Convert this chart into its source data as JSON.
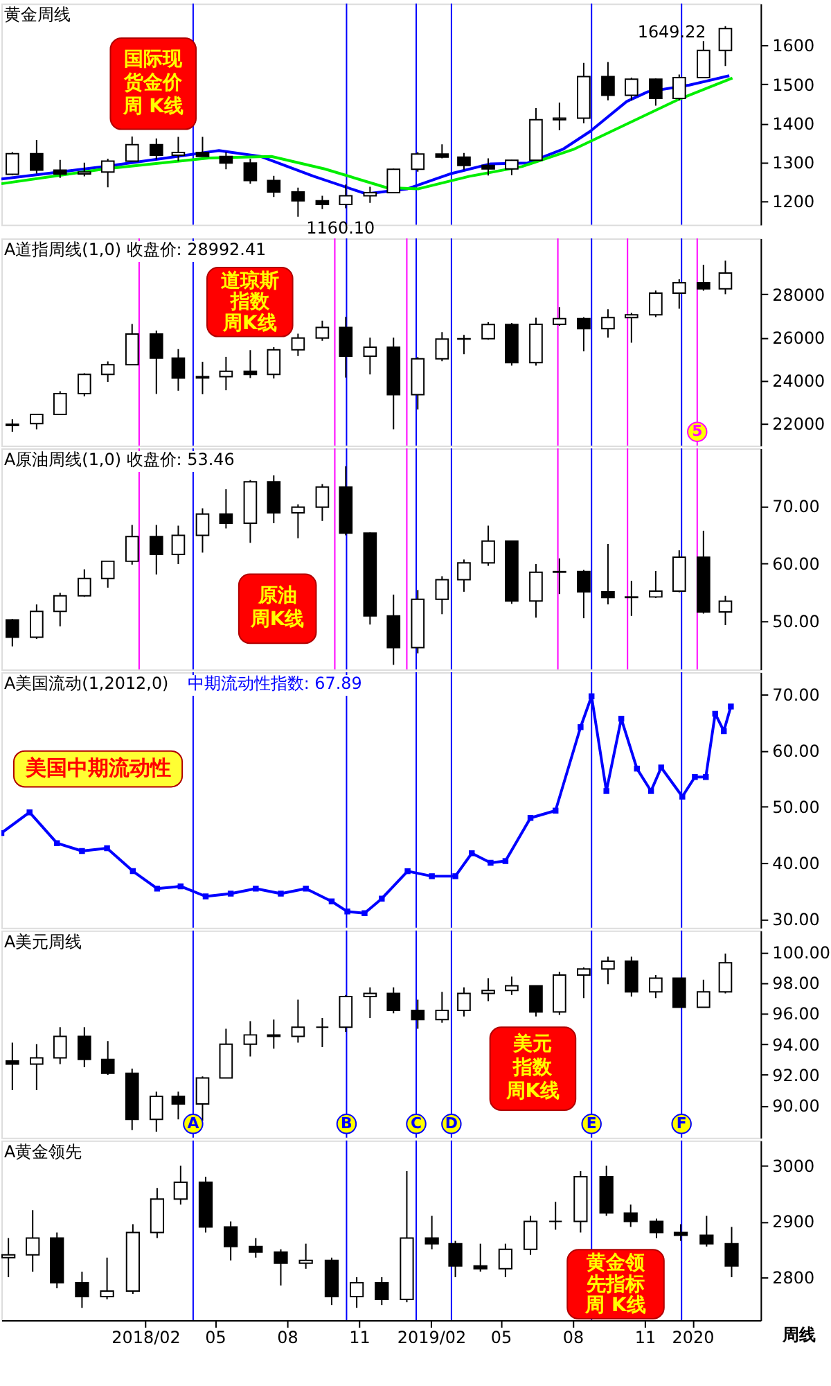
{
  "chart_data": [
    {
      "type": "candlestick",
      "title": "黄金周线",
      "xlim": [
        "2017-08-01",
        "2020-03-28"
      ],
      "tick_labels": "y",
      "grid": false,
      "legend": false,
      "ylim": [
        1140,
        1707
      ],
      "yticks": [
        1200,
        1300,
        1400,
        1500,
        1600
      ],
      "x": [
        "2017-08-15",
        "2017-09-15",
        "2017-10-15",
        "2017-11-15",
        "2017-12-15",
        "2018-01-15",
        "2018-02-15",
        "2018-03-15",
        "2018-04-15",
        "2018-05-15",
        "2018-06-15",
        "2018-07-15",
        "2018-08-15",
        "2018-09-15",
        "2018-10-15",
        "2018-11-15",
        "2018-12-15",
        "2019-01-15",
        "2019-02-15",
        "2019-03-15",
        "2019-04-15",
        "2019-05-15",
        "2019-06-15",
        "2019-07-15",
        "2019-08-15",
        "2019-09-15",
        "2019-10-15",
        "2019-11-15",
        "2019-12-15",
        "2020-01-15",
        "2020-02-12"
      ],
      "ohlc": [
        [
          1269,
          1326,
          1267,
          1322
        ],
        [
          1322,
          1357,
          1271,
          1280
        ],
        [
          1280,
          1306,
          1260,
          1270
        ],
        [
          1270,
          1299,
          1264,
          1275
        ],
        [
          1275,
          1309,
          1236,
          1303
        ],
        [
          1303,
          1366,
          1302,
          1345
        ],
        [
          1345,
          1361,
          1307,
          1318
        ],
        [
          1318,
          1365,
          1303,
          1325
        ],
        [
          1325,
          1365,
          1315,
          1315
        ],
        [
          1315,
          1326,
          1282,
          1298
        ],
        [
          1298,
          1309,
          1245,
          1253
        ],
        [
          1253,
          1265,
          1211,
          1224
        ],
        [
          1224,
          1235,
          1160.1,
          1201
        ],
        [
          1201,
          1214,
          1180,
          1192
        ],
        [
          1192,
          1243,
          1182,
          1214
        ],
        [
          1214,
          1237,
          1196,
          1222
        ],
        [
          1222,
          1284,
          1221,
          1282
        ],
        [
          1282,
          1326,
          1276,
          1321
        ],
        [
          1321,
          1346,
          1310,
          1313
        ],
        [
          1313,
          1324,
          1281,
          1292
        ],
        [
          1292,
          1310,
          1266,
          1283
        ],
        [
          1283,
          1306,
          1267,
          1305
        ],
        [
          1305,
          1439,
          1305,
          1409
        ],
        [
          1409,
          1453,
          1382,
          1413
        ],
        [
          1413,
          1555,
          1400,
          1520
        ],
        [
          1520,
          1557,
          1459,
          1472
        ],
        [
          1472,
          1517,
          1459,
          1513
        ],
        [
          1513,
          1515,
          1445,
          1464
        ],
        [
          1464,
          1525,
          1459,
          1517
        ],
        [
          1517,
          1611,
          1517,
          1587
        ],
        [
          1587,
          1649.22,
          1547,
          1643
        ]
      ],
      "series": [
        {
          "type": "line",
          "color": "#0000ff",
          "x": [
            "2017-08-01",
            "2017-12-11",
            "2018-05-06",
            "2018-06-28",
            "2018-09-04",
            "2018-11-10",
            "2019-01-02",
            "2019-02-25",
            "2019-04-18",
            "2019-06-04",
            "2019-07-20",
            "2019-08-23",
            "2019-10-09",
            "2019-11-05",
            "2019-12-28",
            "2020-02-17"
          ],
          "values": [
            1257,
            1289,
            1330,
            1315,
            1264,
            1219,
            1232,
            1270,
            1296,
            1298,
            1334,
            1379,
            1456,
            1481,
            1498,
            1522
          ]
        },
        {
          "type": "line",
          "color": "#00ee00",
          "x": [
            "2017-08-01",
            "2017-12-11",
            "2018-04-23",
            "2018-07-12",
            "2018-09-18",
            "2018-12-06",
            "2019-01-16",
            "2019-03-22",
            "2019-05-28",
            "2019-08-03",
            "2019-10-09",
            "2019-12-15",
            "2020-02-21"
          ],
          "values": [
            1245,
            1283,
            1311,
            1315,
            1283,
            1235,
            1232,
            1264,
            1289,
            1334,
            1398,
            1462,
            1516
          ]
        }
      ],
      "ref_lines": [
        {
          "axis": "x",
          "value": "2018-04-03",
          "color": "#0000ff"
        },
        {
          "axis": "x",
          "value": "2018-10-16",
          "color": "#0000ff"
        },
        {
          "axis": "x",
          "value": "2019-01-13",
          "color": "#0000ff"
        },
        {
          "axis": "x",
          "value": "2019-02-27",
          "color": "#0000ff"
        },
        {
          "axis": "x",
          "value": "2019-08-25",
          "color": "#0000ff"
        },
        {
          "axis": "x",
          "value": "2019-12-18",
          "color": "#0000ff"
        }
      ],
      "annotations": [
        "国际现货金价周 K线",
        {
          "text": "1649.22",
          "x": "2020-02-12",
          "y": 1649.22
        },
        {
          "text": "1160.10",
          "x": "2018-08-15",
          "y": 1160.1
        }
      ]
    },
    {
      "type": "candlestick",
      "title": "A道指周线(1,0) 收盘价: 28992.41",
      "xlim": [
        "2017-08-01",
        "2020-03-28"
      ],
      "tick_labels": "y",
      "grid": false,
      "legend": false,
      "ylim": [
        20950,
        30600
      ],
      "yticks": [
        22000,
        24000,
        26000,
        28000
      ],
      "x": [
        "2017-08-15",
        "2017-09-15",
        "2017-10-15",
        "2017-11-15",
        "2017-12-15",
        "2018-01-15",
        "2018-02-15",
        "2018-03-15",
        "2018-04-15",
        "2018-05-15",
        "2018-06-15",
        "2018-07-15",
        "2018-08-15",
        "2018-09-15",
        "2018-10-15",
        "2018-11-15",
        "2018-12-15",
        "2019-01-15",
        "2019-02-15",
        "2019-03-15",
        "2019-04-15",
        "2019-05-15",
        "2019-06-15",
        "2019-07-15",
        "2019-08-15",
        "2019-09-15",
        "2019-10-15",
        "2019-11-15",
        "2019-12-15",
        "2020-01-15",
        "2020-02-12"
      ],
      "ohlc": [
        [
          21891,
          22180,
          21600,
          21948
        ],
        [
          21981,
          22419,
          21710,
          22405
        ],
        [
          22405,
          23485,
          22405,
          23377
        ],
        [
          23377,
          24328,
          23242,
          24272
        ],
        [
          24272,
          24876,
          23921,
          24719
        ],
        [
          24719,
          26617,
          24719,
          26149
        ],
        [
          26149,
          26307,
          23360,
          25029
        ],
        [
          25029,
          25450,
          23509,
          24103
        ],
        [
          24103,
          24858,
          23345,
          24163
        ],
        [
          24163,
          25087,
          23531,
          24416
        ],
        [
          24416,
          25402,
          24101,
          24271
        ],
        [
          24271,
          25538,
          24077,
          25415
        ],
        [
          25415,
          26167,
          25124,
          25965
        ],
        [
          25965,
          26769,
          25836,
          26458
        ],
        [
          26458,
          26951,
          24123,
          25116
        ],
        [
          25116,
          25980,
          24268,
          25538
        ],
        [
          25538,
          25980,
          21713,
          23327
        ],
        [
          23327,
          25075,
          22638,
          24999
        ],
        [
          24999,
          26242,
          24883,
          25916
        ],
        [
          25916,
          26109,
          25208,
          25929
        ],
        [
          25929,
          26696,
          25882,
          26593
        ],
        [
          26593,
          26668,
          24680,
          24815
        ],
        [
          24815,
          26907,
          24680,
          26600
        ],
        [
          26600,
          27399,
          26539,
          26864
        ],
        [
          26864,
          26933,
          25339,
          26403
        ],
        [
          26403,
          27306,
          25978,
          26917
        ],
        [
          26917,
          27130,
          25743,
          27046
        ],
        [
          27046,
          28175,
          26939,
          28051
        ],
        [
          28051,
          28702,
          27325,
          28538
        ],
        [
          28538,
          29374,
          28170,
          28256
        ],
        [
          28256,
          29568,
          28004,
          28992.41
        ]
      ],
      "ref_lines": [
        {
          "axis": "x",
          "value": "2018-04-03",
          "color": "#0000ff"
        },
        {
          "axis": "x",
          "value": "2018-10-16",
          "color": "#0000ff"
        },
        {
          "axis": "x",
          "value": "2019-01-13",
          "color": "#0000ff"
        },
        {
          "axis": "x",
          "value": "2019-02-27",
          "color": "#0000ff"
        },
        {
          "axis": "x",
          "value": "2019-08-25",
          "color": "#0000ff"
        },
        {
          "axis": "x",
          "value": "2019-12-18",
          "color": "#0000ff"
        },
        {
          "axis": "x",
          "value": "2018-01-24",
          "color": "#ff00ff"
        },
        {
          "axis": "x",
          "value": "2018-10-01",
          "color": "#ff00ff"
        },
        {
          "axis": "x",
          "value": "2019-01-01",
          "color": "#ff00ff"
        },
        {
          "axis": "x",
          "value": "2019-07-13",
          "color": "#ff00ff"
        },
        {
          "axis": "x",
          "value": "2019-10-10",
          "color": "#ff00ff"
        },
        {
          "axis": "x",
          "value": "2020-01-07",
          "color": "#ff00ff",
          "label": "5"
        }
      ],
      "annotations": [
        "道琼斯指数周K线"
      ]
    },
    {
      "type": "candlestick",
      "title": "A原油周线(1,0) 收盘价: 53.46",
      "xlim": [
        "2017-08-01",
        "2020-03-28"
      ],
      "tick_labels": "y",
      "grid": false,
      "legend": false,
      "ylim": [
        41.6,
        80
      ],
      "yticks": [
        {
          "value": 50,
          "label": "50.00"
        },
        {
          "value": 60,
          "label": "60.00"
        },
        {
          "value": 70,
          "label": "70.00"
        }
      ],
      "x": [
        "2017-08-15",
        "2017-09-15",
        "2017-10-15",
        "2017-11-15",
        "2017-12-15",
        "2018-01-15",
        "2018-02-15",
        "2018-03-15",
        "2018-04-15",
        "2018-05-15",
        "2018-06-15",
        "2018-07-15",
        "2018-08-15",
        "2018-09-15",
        "2018-10-15",
        "2018-11-15",
        "2018-12-15",
        "2019-01-15",
        "2019-02-15",
        "2019-03-15",
        "2019-04-15",
        "2019-05-15",
        "2019-06-15",
        "2019-07-15",
        "2019-08-15",
        "2019-09-15",
        "2019-10-15",
        "2019-11-15",
        "2019-12-15",
        "2020-01-15",
        "2020-02-12"
      ],
      "ohlc": [
        [
          50.2,
          50.4,
          45.6,
          47.2
        ],
        [
          47.2,
          52.9,
          46.9,
          51.7
        ],
        [
          51.7,
          54.9,
          49.1,
          54.4
        ],
        [
          54.4,
          59.0,
          54.2,
          57.4
        ],
        [
          57.4,
          60.5,
          55.8,
          60.4
        ],
        [
          60.4,
          66.7,
          59.8,
          64.7
        ],
        [
          64.7,
          66.7,
          58.1,
          61.6
        ],
        [
          61.6,
          66.6,
          59.9,
          64.9
        ],
        [
          64.9,
          69.6,
          61.9,
          68.6
        ],
        [
          68.6,
          72.9,
          66.1,
          67.0
        ],
        [
          67.0,
          74.5,
          63.6,
          74.2
        ],
        [
          74.2,
          75.3,
          67.0,
          68.8
        ],
        [
          68.8,
          70.3,
          64.4,
          69.8
        ],
        [
          69.8,
          73.8,
          67.4,
          73.3
        ],
        [
          73.3,
          76.9,
          64.9,
          65.3
        ],
        [
          65.3,
          65.4,
          49.4,
          50.9
        ],
        [
          50.9,
          54.6,
          42.4,
          45.4
        ],
        [
          45.4,
          55.4,
          44.4,
          53.8
        ],
        [
          53.8,
          57.8,
          51.2,
          57.2
        ],
        [
          57.2,
          60.7,
          55.1,
          60.1
        ],
        [
          60.1,
          66.6,
          59.6,
          63.9
        ],
        [
          63.9,
          64.0,
          53.0,
          53.5
        ],
        [
          53.5,
          59.9,
          50.6,
          58.5
        ],
        [
          58.5,
          60.9,
          54.7,
          58.6
        ],
        [
          58.6,
          58.9,
          50.5,
          55.1
        ],
        [
          55.1,
          63.4,
          52.9,
          54.1
        ],
        [
          54.1,
          57.0,
          50.9,
          54.2
        ],
        [
          54.2,
          58.7,
          54.0,
          55.2
        ],
        [
          55.2,
          62.3,
          55.0,
          61.1
        ],
        [
          61.1,
          65.7,
          51.3,
          51.6
        ],
        [
          51.6,
          54.4,
          49.3,
          53.46
        ]
      ],
      "ref_lines": [
        {
          "axis": "x",
          "value": "2018-04-03",
          "color": "#0000ff"
        },
        {
          "axis": "x",
          "value": "2018-10-16",
          "color": "#0000ff"
        },
        {
          "axis": "x",
          "value": "2019-01-13",
          "color": "#0000ff"
        },
        {
          "axis": "x",
          "value": "2019-02-27",
          "color": "#0000ff"
        },
        {
          "axis": "x",
          "value": "2019-08-25",
          "color": "#0000ff"
        },
        {
          "axis": "x",
          "value": "2019-12-18",
          "color": "#0000ff"
        },
        {
          "axis": "x",
          "value": "2018-01-24",
          "color": "#ff00ff"
        },
        {
          "axis": "x",
          "value": "2018-10-01",
          "color": "#ff00ff"
        },
        {
          "axis": "x",
          "value": "2019-01-01",
          "color": "#ff00ff"
        },
        {
          "axis": "x",
          "value": "2019-07-13",
          "color": "#ff00ff"
        },
        {
          "axis": "x",
          "value": "2019-10-10",
          "color": "#ff00ff"
        },
        {
          "axis": "x",
          "value": "2020-01-07",
          "color": "#ff00ff"
        }
      ],
      "annotations": [
        "原油周K线"
      ]
    },
    {
      "type": "line",
      "title": "A美国流动(1,2012,0)",
      "xlim": [
        "2017-08-01",
        "2020-03-28"
      ],
      "tick_labels": "y",
      "grid": false,
      "legend": "top left",
      "marker": "square",
      "ylim": [
        28.4,
        74
      ],
      "yticks": [
        {
          "value": 30,
          "label": "30.00"
        },
        {
          "value": 40,
          "label": "40.00"
        },
        {
          "value": 50,
          "label": "50.00"
        },
        {
          "value": 60,
          "label": "60.00"
        },
        {
          "value": 70,
          "label": "70.00"
        }
      ],
      "series": [
        {
          "name": "中期流动性指数: 67.89",
          "color": "#0000ff",
          "x": [
            "2017-08-01",
            "2017-09-06",
            "2017-10-11",
            "2017-11-12",
            "2017-12-14",
            "2018-01-16",
            "2018-02-16",
            "2018-03-18",
            "2018-04-19",
            "2018-05-21",
            "2018-06-22",
            "2018-07-24",
            "2018-08-25",
            "2018-09-27",
            "2018-10-17",
            "2018-11-08",
            "2018-11-30",
            "2019-01-02",
            "2019-02-02",
            "2019-03-04",
            "2019-03-25",
            "2019-04-18",
            "2019-05-07",
            "2019-06-08",
            "2019-07-10",
            "2019-08-11",
            "2019-08-25",
            "2019-09-13",
            "2019-10-02",
            "2019-10-22",
            "2019-11-09",
            "2019-11-22",
            "2019-12-19",
            "2020-01-04",
            "2020-01-18",
            "2020-01-30",
            "2020-02-10",
            "2020-02-19"
          ],
          "values": [
            45.3,
            49.0,
            43.5,
            42.1,
            42.6,
            38.5,
            35.4,
            35.8,
            34.0,
            34.5,
            35.4,
            34.5,
            35.4,
            33.1,
            31.3,
            31.0,
            33.6,
            38.5,
            37.6,
            37.6,
            41.7,
            40.0,
            40.3,
            48.0,
            49.3,
            64.2,
            69.7,
            52.8,
            65.7,
            56.8,
            52.8,
            57.0,
            51.8,
            55.3,
            55.3,
            66.6,
            63.5,
            67.89
          ]
        }
      ],
      "ref_lines": [
        {
          "axis": "x",
          "value": "2018-04-03",
          "color": "#0000ff"
        },
        {
          "axis": "x",
          "value": "2018-10-16",
          "color": "#0000ff"
        },
        {
          "axis": "x",
          "value": "2019-01-13",
          "color": "#0000ff"
        },
        {
          "axis": "x",
          "value": "2019-02-27",
          "color": "#0000ff"
        },
        {
          "axis": "x",
          "value": "2019-08-25",
          "color": "#0000ff"
        },
        {
          "axis": "x",
          "value": "2019-12-18",
          "color": "#0000ff"
        }
      ],
      "annotations": [
        "美国中期流动性"
      ]
    },
    {
      "type": "candlestick",
      "title": "A美元周线",
      "xlim": [
        "2017-08-01",
        "2020-03-28"
      ],
      "tick_labels": "y",
      "grid": false,
      "legend": false,
      "ylim": [
        87.9,
        101.4
      ],
      "yticks": [
        {
          "value": 90,
          "label": "90.00"
        },
        {
          "value": 92,
          "label": "92.00"
        },
        {
          "value": 94,
          "label": "94.00"
        },
        {
          "value": 96,
          "label": "96.00"
        },
        {
          "value": 98,
          "label": "98.00"
        },
        {
          "value": 100,
          "label": "100.00"
        }
      ],
      "x": [
        "2017-08-15",
        "2017-09-15",
        "2017-10-15",
        "2017-11-15",
        "2017-12-15",
        "2018-01-15",
        "2018-02-15",
        "2018-03-15",
        "2018-04-15",
        "2018-05-15",
        "2018-06-15",
        "2018-07-15",
        "2018-08-15",
        "2018-09-15",
        "2018-10-15",
        "2018-11-15",
        "2018-12-15",
        "2019-01-15",
        "2019-02-15",
        "2019-03-15",
        "2019-04-15",
        "2019-05-15",
        "2019-06-15",
        "2019-07-15",
        "2019-08-15",
        "2019-09-15",
        "2019-10-15",
        "2019-11-15",
        "2019-12-15",
        "2020-01-15",
        "2020-02-12"
      ],
      "ohlc": [
        [
          92.9,
          94.1,
          91.0,
          92.7
        ],
        [
          92.7,
          94.0,
          91.0,
          93.1
        ],
        [
          93.1,
          95.1,
          92.7,
          94.5
        ],
        [
          94.5,
          95.1,
          92.5,
          93.0
        ],
        [
          93.0,
          94.2,
          92.0,
          92.1
        ],
        [
          92.1,
          92.4,
          88.4,
          89.1
        ],
        [
          89.1,
          90.9,
          88.3,
          90.6
        ],
        [
          90.6,
          90.9,
          89.1,
          90.1
        ],
        [
          90.1,
          91.9,
          89.0,
          91.8
        ],
        [
          91.8,
          95.0,
          91.8,
          94.0
        ],
        [
          94.0,
          95.5,
          93.2,
          94.6
        ],
        [
          94.6,
          95.6,
          93.7,
          94.5
        ],
        [
          94.5,
          96.9,
          94.1,
          95.1
        ],
        [
          95.1,
          95.7,
          93.8,
          95.1
        ],
        [
          95.1,
          97.2,
          94.8,
          97.1
        ],
        [
          97.1,
          97.7,
          95.7,
          97.3
        ],
        [
          97.3,
          97.7,
          96.0,
          96.2
        ],
        [
          96.2,
          96.9,
          95.0,
          95.6
        ],
        [
          95.6,
          97.4,
          95.4,
          96.2
        ],
        [
          96.2,
          97.7,
          95.8,
          97.3
        ],
        [
          97.3,
          98.3,
          96.8,
          97.5
        ],
        [
          97.5,
          98.4,
          97.2,
          97.8
        ],
        [
          97.8,
          97.8,
          95.8,
          96.1
        ],
        [
          96.1,
          98.7,
          95.9,
          98.5
        ],
        [
          98.5,
          99.0,
          97.0,
          98.9
        ],
        [
          98.9,
          99.7,
          97.9,
          99.4
        ],
        [
          99.4,
          99.7,
          97.1,
          97.4
        ],
        [
          97.4,
          98.5,
          97.0,
          98.3
        ],
        [
          98.3,
          98.3,
          96.4,
          96.4
        ],
        [
          96.4,
          98.2,
          96.4,
          97.4
        ],
        [
          97.4,
          99.9,
          97.3,
          99.3
        ]
      ],
      "ref_lines": [
        {
          "axis": "x",
          "value": "2018-04-03",
          "color": "#0000ff",
          "label": "A"
        },
        {
          "axis": "x",
          "value": "2018-10-16",
          "color": "#0000ff",
          "label": "B"
        },
        {
          "axis": "x",
          "value": "2019-01-13",
          "color": "#0000ff",
          "label": "C"
        },
        {
          "axis": "x",
          "value": "2019-02-27",
          "color": "#0000ff",
          "label": "D"
        },
        {
          "axis": "x",
          "value": "2019-08-25",
          "color": "#0000ff",
          "label": "E"
        },
        {
          "axis": "x",
          "value": "2019-12-18",
          "color": "#0000ff",
          "label": "F"
        }
      ],
      "annotations": [
        "美元指数周K线"
      ]
    },
    {
      "type": "candlestick",
      "title": "A黄金领先",
      "xlim": [
        "2017-08-01",
        "2020-03-28"
      ],
      "grid": false,
      "legend": false,
      "xticks": [
        {
          "value": "2018-02-01",
          "label": "2018/02"
        },
        {
          "value": "2018-05-01",
          "label": "05"
        },
        {
          "value": "2018-08-01",
          "label": "08"
        },
        {
          "value": "2018-11-01",
          "label": "11"
        },
        {
          "value": "2019-02-01",
          "label": "2019/02"
        },
        {
          "value": "2019-05-01",
          "label": "05"
        },
        {
          "value": "2019-08-01",
          "label": "08"
        },
        {
          "value": "2019-11-01",
          "label": "11"
        },
        {
          "value": "2020-01-01",
          "label": "2020"
        }
      ],
      "ylim": [
        2723,
        3045
      ],
      "yticks": [
        2800,
        2900,
        3000
      ],
      "x": [
        "2017-08-10",
        "2017-09-10",
        "2017-10-11",
        "2017-11-12",
        "2017-12-14",
        "2018-01-16",
        "2018-02-16",
        "2018-03-18",
        "2018-04-19",
        "2018-05-21",
        "2018-06-22",
        "2018-07-24",
        "2018-08-25",
        "2018-09-27",
        "2018-10-29",
        "2018-11-30",
        "2019-01-01",
        "2019-02-02",
        "2019-03-04",
        "2019-04-05",
        "2019-05-07",
        "2019-06-08",
        "2019-07-10",
        "2019-08-11",
        "2019-09-13",
        "2019-10-14",
        "2019-11-16",
        "2019-12-17",
        "2020-01-19",
        "2020-02-20"
      ],
      "ohlc": [
        [
          2835,
          2870,
          2800,
          2840
        ],
        [
          2840,
          2920,
          2810,
          2870
        ],
        [
          2870,
          2880,
          2780,
          2790
        ],
        [
          2790,
          2810,
          2745,
          2765
        ],
        [
          2765,
          2835,
          2760,
          2775
        ],
        [
          2775,
          2895,
          2770,
          2880
        ],
        [
          2880,
          2960,
          2870,
          2940
        ],
        [
          2940,
          3000,
          2930,
          2970
        ],
        [
          2970,
          2980,
          2880,
          2890
        ],
        [
          2890,
          2900,
          2830,
          2855
        ],
        [
          2855,
          2870,
          2835,
          2845
        ],
        [
          2845,
          2850,
          2785,
          2825
        ],
        [
          2825,
          2860,
          2815,
          2830
        ],
        [
          2830,
          2835,
          2750,
          2765
        ],
        [
          2765,
          2800,
          2745,
          2790
        ],
        [
          2790,
          2800,
          2750,
          2760
        ],
        [
          2760,
          2990,
          2755,
          2870
        ],
        [
          2870,
          2910,
          2850,
          2860
        ],
        [
          2860,
          2865,
          2800,
          2820
        ],
        [
          2820,
          2860,
          2810,
          2815
        ],
        [
          2815,
          2860,
          2800,
          2850
        ],
        [
          2850,
          2910,
          2840,
          2900
        ],
        [
          2900,
          2935,
          2885,
          2900
        ],
        [
          2900,
          2990,
          2880,
          2980
        ],
        [
          2980,
          3000,
          2910,
          2915
        ],
        [
          2915,
          2930,
          2890,
          2900
        ],
        [
          2900,
          2905,
          2870,
          2880
        ],
        [
          2880,
          2895,
          2865,
          2875
        ],
        [
          2875,
          2910,
          2855,
          2860
        ],
        [
          2860,
          2890,
          2800,
          2820
        ]
      ],
      "ref_lines": [
        {
          "axis": "x",
          "value": "2018-04-03",
          "color": "#0000ff"
        },
        {
          "axis": "x",
          "value": "2018-10-16",
          "color": "#0000ff"
        },
        {
          "axis": "x",
          "value": "2019-01-13",
          "color": "#0000ff"
        },
        {
          "axis": "x",
          "value": "2019-02-27",
          "color": "#0000ff"
        },
        {
          "axis": "x",
          "value": "2019-08-25",
          "color": "#0000ff"
        },
        {
          "axis": "x",
          "value": "2019-12-18",
          "color": "#0000ff"
        }
      ],
      "annotations": [
        "黄金领先指标周 K线",
        "周线"
      ]
    }
  ]
}
